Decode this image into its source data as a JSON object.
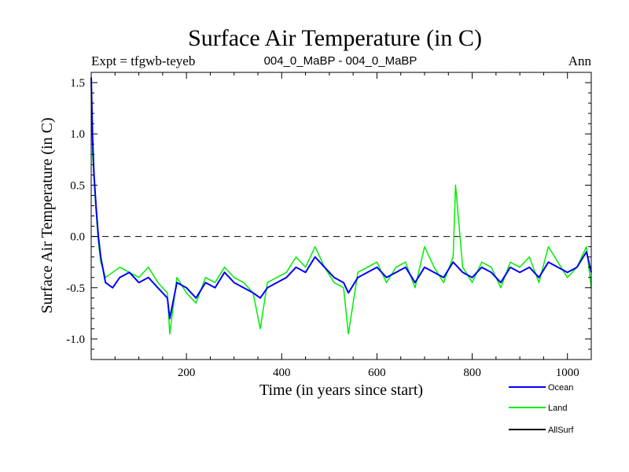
{
  "chart_data": {
    "type": "line",
    "title": "Surface Air Temperature (in C)",
    "subtitle_left": "Expt = tfgwb-teyeb",
    "subtitle_center": "004_0_MaBP - 004_0_MaBP",
    "subtitle_right": "Ann",
    "xlabel": "Time (in years since start)",
    "ylabel": "Surface Air Temperature (in C)",
    "xlim": [
      0,
      1050
    ],
    "ylim": [
      -1.2,
      1.6
    ],
    "x_ticks": [
      200,
      400,
      600,
      800,
      1000
    ],
    "y_ticks": [
      -1.0,
      -0.5,
      0.0,
      0.5,
      1.0,
      1.5
    ],
    "x_tick_labels": [
      "200",
      "400",
      "600",
      "800",
      "1000"
    ],
    "y_tick_labels": [
      "-1.0",
      "-0.5",
      "0.0",
      "0.5",
      "1.0",
      "1.5"
    ],
    "reference_line": {
      "y": 0.0,
      "style": "dashed"
    },
    "legend_position": "bottom-right",
    "series": [
      {
        "name": "Ocean",
        "color": "#0000ff",
        "x": [
          0,
          3,
          6,
          10,
          15,
          20,
          30,
          45,
          60,
          80,
          100,
          120,
          140,
          160,
          165,
          180,
          200,
          220,
          240,
          260,
          280,
          300,
          320,
          340,
          355,
          370,
          390,
          410,
          430,
          450,
          470,
          490,
          510,
          530,
          540,
          560,
          580,
          600,
          620,
          640,
          660,
          680,
          700,
          720,
          740,
          760,
          780,
          800,
          820,
          840,
          860,
          880,
          900,
          920,
          940,
          960,
          980,
          1000,
          1020,
          1040,
          1050
        ],
        "values": [
          1.55,
          0.95,
          0.6,
          0.3,
          0.0,
          -0.2,
          -0.45,
          -0.5,
          -0.4,
          -0.35,
          -0.45,
          -0.4,
          -0.5,
          -0.6,
          -0.8,
          -0.45,
          -0.5,
          -0.6,
          -0.45,
          -0.5,
          -0.35,
          -0.45,
          -0.5,
          -0.55,
          -0.6,
          -0.5,
          -0.45,
          -0.4,
          -0.3,
          -0.35,
          -0.2,
          -0.3,
          -0.4,
          -0.45,
          -0.55,
          -0.4,
          -0.35,
          -0.3,
          -0.4,
          -0.35,
          -0.3,
          -0.45,
          -0.3,
          -0.35,
          -0.4,
          -0.25,
          -0.35,
          -0.4,
          -0.3,
          -0.35,
          -0.45,
          -0.3,
          -0.35,
          -0.3,
          -0.4,
          -0.25,
          -0.3,
          -0.35,
          -0.3,
          -0.15,
          -0.35
        ]
      },
      {
        "name": "Land",
        "color": "#00ee00",
        "x": [
          0,
          3,
          6,
          10,
          15,
          20,
          30,
          45,
          60,
          80,
          100,
          120,
          140,
          160,
          165,
          180,
          200,
          220,
          240,
          260,
          280,
          300,
          320,
          340,
          355,
          370,
          390,
          410,
          430,
          450,
          470,
          490,
          510,
          530,
          540,
          560,
          580,
          600,
          620,
          640,
          660,
          680,
          700,
          720,
          740,
          760,
          765,
          780,
          800,
          820,
          840,
          860,
          880,
          900,
          920,
          940,
          960,
          980,
          1000,
          1020,
          1040,
          1050
        ],
        "values": [
          1.4,
          0.8,
          0.55,
          0.25,
          -0.05,
          -0.25,
          -0.4,
          -0.35,
          -0.3,
          -0.35,
          -0.4,
          -0.3,
          -0.45,
          -0.55,
          -0.95,
          -0.4,
          -0.55,
          -0.65,
          -0.4,
          -0.45,
          -0.3,
          -0.4,
          -0.45,
          -0.55,
          -0.9,
          -0.45,
          -0.4,
          -0.35,
          -0.2,
          -0.3,
          -0.1,
          -0.3,
          -0.45,
          -0.5,
          -0.95,
          -0.35,
          -0.3,
          -0.25,
          -0.45,
          -0.3,
          -0.25,
          -0.5,
          -0.1,
          -0.3,
          -0.45,
          -0.2,
          0.5,
          -0.3,
          -0.45,
          -0.25,
          -0.3,
          -0.5,
          -0.25,
          -0.3,
          -0.2,
          -0.45,
          -0.1,
          -0.25,
          -0.4,
          -0.3,
          -0.1,
          -0.5
        ]
      },
      {
        "name": "AllSurf",
        "color": "#000000",
        "x": [],
        "values": []
      }
    ]
  }
}
